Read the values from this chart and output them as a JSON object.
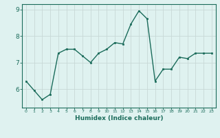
{
  "xlabel": "Humidex (Indice chaleur)",
  "ylabel": "",
  "x_values": [
    0,
    1,
    2,
    3,
    4,
    5,
    6,
    7,
    8,
    9,
    10,
    11,
    12,
    13,
    14,
    15,
    16,
    17,
    18,
    19,
    20,
    21,
    22,
    23
  ],
  "y_values": [
    6.3,
    5.95,
    5.6,
    5.8,
    7.35,
    7.5,
    7.5,
    7.25,
    7.0,
    7.35,
    7.5,
    7.75,
    7.7,
    8.45,
    8.95,
    8.65,
    6.3,
    6.75,
    6.75,
    7.2,
    7.15,
    7.35,
    7.35,
    7.35
  ],
  "ylim": [
    5.3,
    9.2
  ],
  "xlim": [
    -0.5,
    23.5
  ],
  "yticks": [
    6,
    7,
    8,
    9
  ],
  "xticks": [
    0,
    1,
    2,
    3,
    4,
    5,
    6,
    7,
    8,
    9,
    10,
    11,
    12,
    13,
    14,
    15,
    16,
    17,
    18,
    19,
    20,
    21,
    22,
    23
  ],
  "line_color": "#1a6b5a",
  "marker_color": "#1a6b5a",
  "bg_color": "#dff2f0",
  "grid_color": "#c8d8d6",
  "axis_color": "#1a6b5a",
  "tick_color": "#1a6b5a",
  "label_color": "#1a6b5a",
  "xlabel_fontsize": 6.5,
  "tick_fontsize_x": 4.5,
  "tick_fontsize_y": 6.5,
  "linewidth": 1.0,
  "markersize": 2.0
}
